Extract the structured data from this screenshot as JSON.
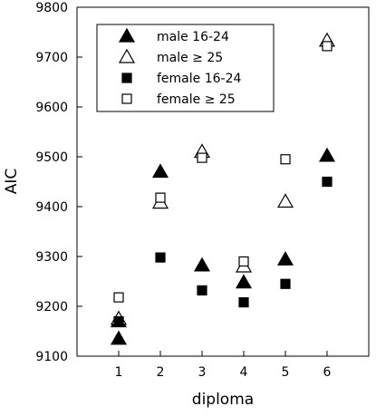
{
  "chart_data": {
    "type": "scatter",
    "xlabel": "diploma",
    "ylabel": "AIC",
    "xlim": [
      0,
      7
    ],
    "ylim": [
      9100,
      9800
    ],
    "xticks": [
      "1",
      "2",
      "3",
      "4",
      "5",
      "6"
    ],
    "yticks": [
      "9100",
      "9200",
      "9300",
      "9400",
      "9500",
      "9600",
      "9700",
      "9800"
    ],
    "grid": false,
    "legend_position": "top-left",
    "series": [
      {
        "name": "male 16-24",
        "marker": "triangle-filled",
        "x": [
          1,
          1,
          2,
          3,
          4,
          5,
          6
        ],
        "y": [
          9170,
          9135,
          9470,
          9282,
          9248,
          9294,
          9502
        ]
      },
      {
        "name": "male   ≥ 25",
        "marker": "triangle-open",
        "x": [
          1,
          2,
          3,
          4,
          5,
          6
        ],
        "y": [
          9175,
          9408,
          9510,
          9280,
          9410,
          9733
        ]
      },
      {
        "name": "female 16-24",
        "marker": "square-filled",
        "x": [
          1,
          2,
          3,
          4,
          5,
          6
        ],
        "y": [
          9170,
          9298,
          9232,
          9208,
          9245,
          9450
        ]
      },
      {
        "name": "female    ≥ 25",
        "marker": "square-open",
        "x": [
          1,
          2,
          3,
          4,
          5,
          6
        ],
        "y": [
          9218,
          9418,
          9498,
          9290,
          9495,
          9722
        ]
      }
    ]
  }
}
